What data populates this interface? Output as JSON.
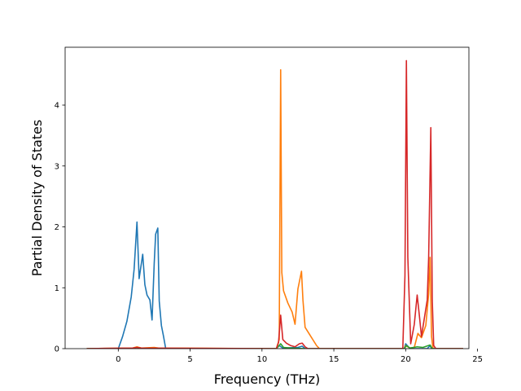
{
  "chart_data": {
    "type": "line",
    "title": "",
    "xlabel": "Frequency (THz)",
    "ylabel": "Partial Density of States",
    "xlim": [
      -3.7,
      24.4
    ],
    "ylim": [
      0,
      4.95
    ],
    "grid": false,
    "legend": "none",
    "x_ticks": [
      0,
      5,
      10,
      15,
      20,
      25
    ],
    "y_ticks": [
      0,
      1,
      2,
      3,
      4
    ],
    "series": [
      {
        "color": "#1f77b4",
        "points": [
          [
            -2.2,
            0
          ],
          [
            0,
            0
          ],
          [
            0.3,
            0.2
          ],
          [
            0.6,
            0.45
          ],
          [
            0.9,
            0.85
          ],
          [
            1.1,
            1.3
          ],
          [
            1.3,
            2.08
          ],
          [
            1.45,
            1.15
          ],
          [
            1.7,
            1.55
          ],
          [
            1.85,
            1.05
          ],
          [
            2.0,
            0.88
          ],
          [
            2.2,
            0.8
          ],
          [
            2.35,
            0.47
          ],
          [
            2.5,
            1.4
          ],
          [
            2.6,
            1.88
          ],
          [
            2.75,
            1.98
          ],
          [
            2.85,
            0.78
          ],
          [
            3.0,
            0.38
          ],
          [
            3.15,
            0.2
          ],
          [
            3.3,
            0
          ],
          [
            11.0,
            0
          ],
          [
            11.2,
            0.05
          ],
          [
            11.45,
            0.01
          ],
          [
            12.5,
            0.02
          ],
          [
            12.8,
            0.04
          ],
          [
            13.0,
            0
          ],
          [
            19.9,
            0
          ],
          [
            20.0,
            0.08
          ],
          [
            20.3,
            0
          ],
          [
            21.5,
            0
          ],
          [
            21.7,
            0.05
          ],
          [
            21.8,
            0
          ],
          [
            24.0,
            0
          ]
        ]
      },
      {
        "color": "#ff7f0e",
        "points": [
          [
            -2.2,
            0
          ],
          [
            1.0,
            0.01
          ],
          [
            1.3,
            0.03
          ],
          [
            1.6,
            0.01
          ],
          [
            2.5,
            0.02
          ],
          [
            2.8,
            0.01
          ],
          [
            11.0,
            0
          ],
          [
            11.2,
            0.15
          ],
          [
            11.3,
            4.58
          ],
          [
            11.38,
            1.25
          ],
          [
            11.5,
            0.95
          ],
          [
            11.8,
            0.75
          ],
          [
            12.1,
            0.6
          ],
          [
            12.3,
            0.4
          ],
          [
            12.5,
            0.98
          ],
          [
            12.75,
            1.27
          ],
          [
            12.85,
            0.8
          ],
          [
            13.0,
            0.35
          ],
          [
            13.4,
            0.2
          ],
          [
            13.8,
            0.05
          ],
          [
            14.0,
            0
          ],
          [
            19.9,
            0
          ],
          [
            20.0,
            0.05
          ],
          [
            20.3,
            0.01
          ],
          [
            20.6,
            0.02
          ],
          [
            20.85,
            0.25
          ],
          [
            21.1,
            0.18
          ],
          [
            21.4,
            0.38
          ],
          [
            21.6,
            0.9
          ],
          [
            21.7,
            1.5
          ],
          [
            21.8,
            0.2
          ],
          [
            21.9,
            0
          ],
          [
            24.0,
            0
          ]
        ]
      },
      {
        "color": "#2ca02c",
        "points": [
          [
            -2.2,
            0
          ],
          [
            11.0,
            0
          ],
          [
            11.3,
            0.08
          ],
          [
            11.5,
            0.02
          ],
          [
            12.0,
            0.01
          ],
          [
            13.0,
            0
          ],
          [
            19.9,
            0
          ],
          [
            20.05,
            0.05
          ],
          [
            20.3,
            0.01
          ],
          [
            20.8,
            0.03
          ],
          [
            21.2,
            0.02
          ],
          [
            21.7,
            0.06
          ],
          [
            21.85,
            0
          ],
          [
            24.0,
            0
          ]
        ]
      },
      {
        "color": "#d62728",
        "points": [
          [
            -2.2,
            0
          ],
          [
            1.0,
            0.01
          ],
          [
            1.3,
            0.02
          ],
          [
            1.6,
            0.01
          ],
          [
            11.0,
            0
          ],
          [
            11.15,
            0.1
          ],
          [
            11.3,
            0.55
          ],
          [
            11.45,
            0.15
          ],
          [
            11.7,
            0.09
          ],
          [
            12.0,
            0.05
          ],
          [
            12.3,
            0.03
          ],
          [
            12.6,
            0.08
          ],
          [
            12.8,
            0.09
          ],
          [
            13.0,
            0.03
          ],
          [
            13.2,
            0
          ],
          [
            19.8,
            0
          ],
          [
            19.95,
            1.2
          ],
          [
            20.05,
            4.73
          ],
          [
            20.15,
            1.5
          ],
          [
            20.35,
            0.08
          ],
          [
            20.6,
            0.4
          ],
          [
            20.8,
            0.88
          ],
          [
            20.95,
            0.55
          ],
          [
            21.1,
            0.2
          ],
          [
            21.3,
            0.5
          ],
          [
            21.5,
            0.8
          ],
          [
            21.6,
            1.5
          ],
          [
            21.75,
            3.63
          ],
          [
            21.85,
            0.8
          ],
          [
            21.95,
            0.05
          ],
          [
            22.1,
            0
          ],
          [
            24.0,
            0
          ]
        ]
      }
    ]
  }
}
